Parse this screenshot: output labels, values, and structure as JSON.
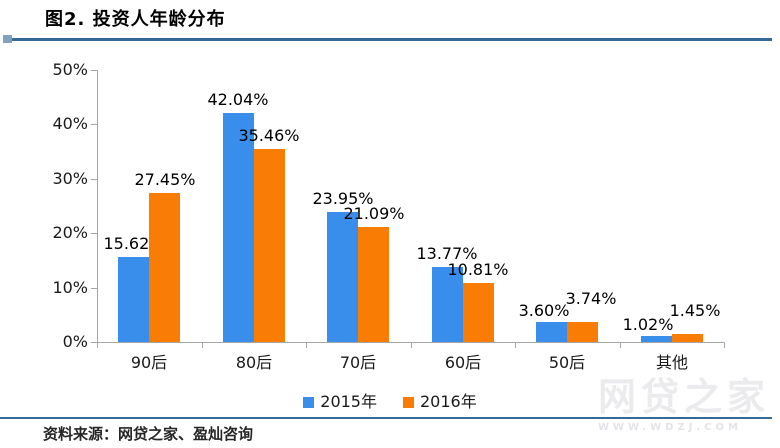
{
  "figure": {
    "title": "图2. 投资人年龄分布"
  },
  "chart_data": {
    "type": "bar",
    "title": "图2. 投资人年龄分布",
    "categories": [
      "90后",
      "80后",
      "70后",
      "60后",
      "50后",
      "其他"
    ],
    "series": [
      {
        "name": "2015年",
        "color": "#3A8EEB",
        "values": [
          15.62,
          42.04,
          23.95,
          13.77,
          3.6,
          1.02
        ]
      },
      {
        "name": "2016年",
        "color": "#F97D04",
        "values": [
          27.45,
          35.46,
          21.09,
          10.81,
          3.74,
          1.45
        ]
      }
    ],
    "xlabel": "",
    "ylabel": "",
    "ylim": [
      0,
      50
    ],
    "yticks": [
      "0%",
      "10%",
      "20%",
      "30%",
      "40%",
      "50%"
    ],
    "grid": false,
    "legend_position": "bottom",
    "data_labels": true,
    "data_label_format": "0.00%",
    "axis_color": "#A6A6A6"
  },
  "footer": {
    "source": "资料来源：网贷之家、盈灿咨询"
  },
  "watermark": {
    "text": "网贷之家",
    "subtext": "WWW.WDZJ.COM"
  },
  "theme": {
    "divider_color": "#336A96",
    "background": "#FFFFFF"
  }
}
